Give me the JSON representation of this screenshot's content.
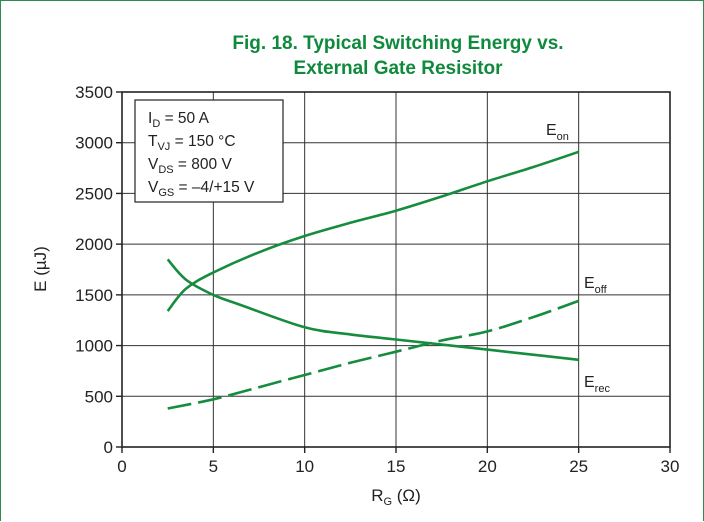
{
  "chart_data": {
    "type": "line",
    "title_line1": "Fig. 18. Typical Switching Energy vs.",
    "title_line2": "External Gate Resisitor",
    "xlabel": {
      "main": "R",
      "sub": "G",
      "rest": " (Ω)"
    },
    "ylabel": "E (µJ)",
    "xlim": [
      0,
      30
    ],
    "ylim": [
      0,
      3500
    ],
    "xticks": [
      0,
      5,
      10,
      15,
      20,
      25,
      30
    ],
    "yticks": [
      0,
      500,
      1000,
      1500,
      2000,
      2500,
      3000,
      3500
    ],
    "grid": true,
    "conditions": [
      {
        "main": "I",
        "sub": "D",
        "rest": " = 50 A"
      },
      {
        "main": "T",
        "sub": "VJ",
        "rest": " = 150 °C"
      },
      {
        "main": "V",
        "sub": "DS",
        "rest": " = 800 V"
      },
      {
        "main": "V",
        "sub": "GS",
        "rest": " = –4/+15 V"
      }
    ],
    "series": [
      {
        "name": "E",
        "name_sub": "on",
        "style": "solid",
        "x": [
          2.5,
          3.5,
          5,
          7.5,
          10,
          12.5,
          15,
          17.5,
          20,
          22.5,
          25
        ],
        "y": [
          1340,
          1560,
          1720,
          1920,
          2080,
          2210,
          2330,
          2470,
          2620,
          2760,
          2910
        ]
      },
      {
        "name": "E",
        "name_sub": "off",
        "style": "dashed",
        "x": [
          2.5,
          5,
          7.5,
          10,
          12.5,
          15,
          17.5,
          20,
          22.5,
          25
        ],
        "y": [
          380,
          470,
          590,
          710,
          830,
          940,
          1050,
          1140,
          1280,
          1440
        ]
      },
      {
        "name": "E",
        "name_sub": "rec",
        "style": "solid",
        "x": [
          2.5,
          3.5,
          5,
          6.5,
          10,
          12.5,
          15,
          17.5,
          20,
          22.5,
          25
        ],
        "y": [
          1850,
          1650,
          1500,
          1400,
          1180,
          1110,
          1060,
          1010,
          960,
          910,
          860
        ]
      }
    ],
    "line_color": "#168c3f",
    "title_color": "#0f8a3c"
  }
}
